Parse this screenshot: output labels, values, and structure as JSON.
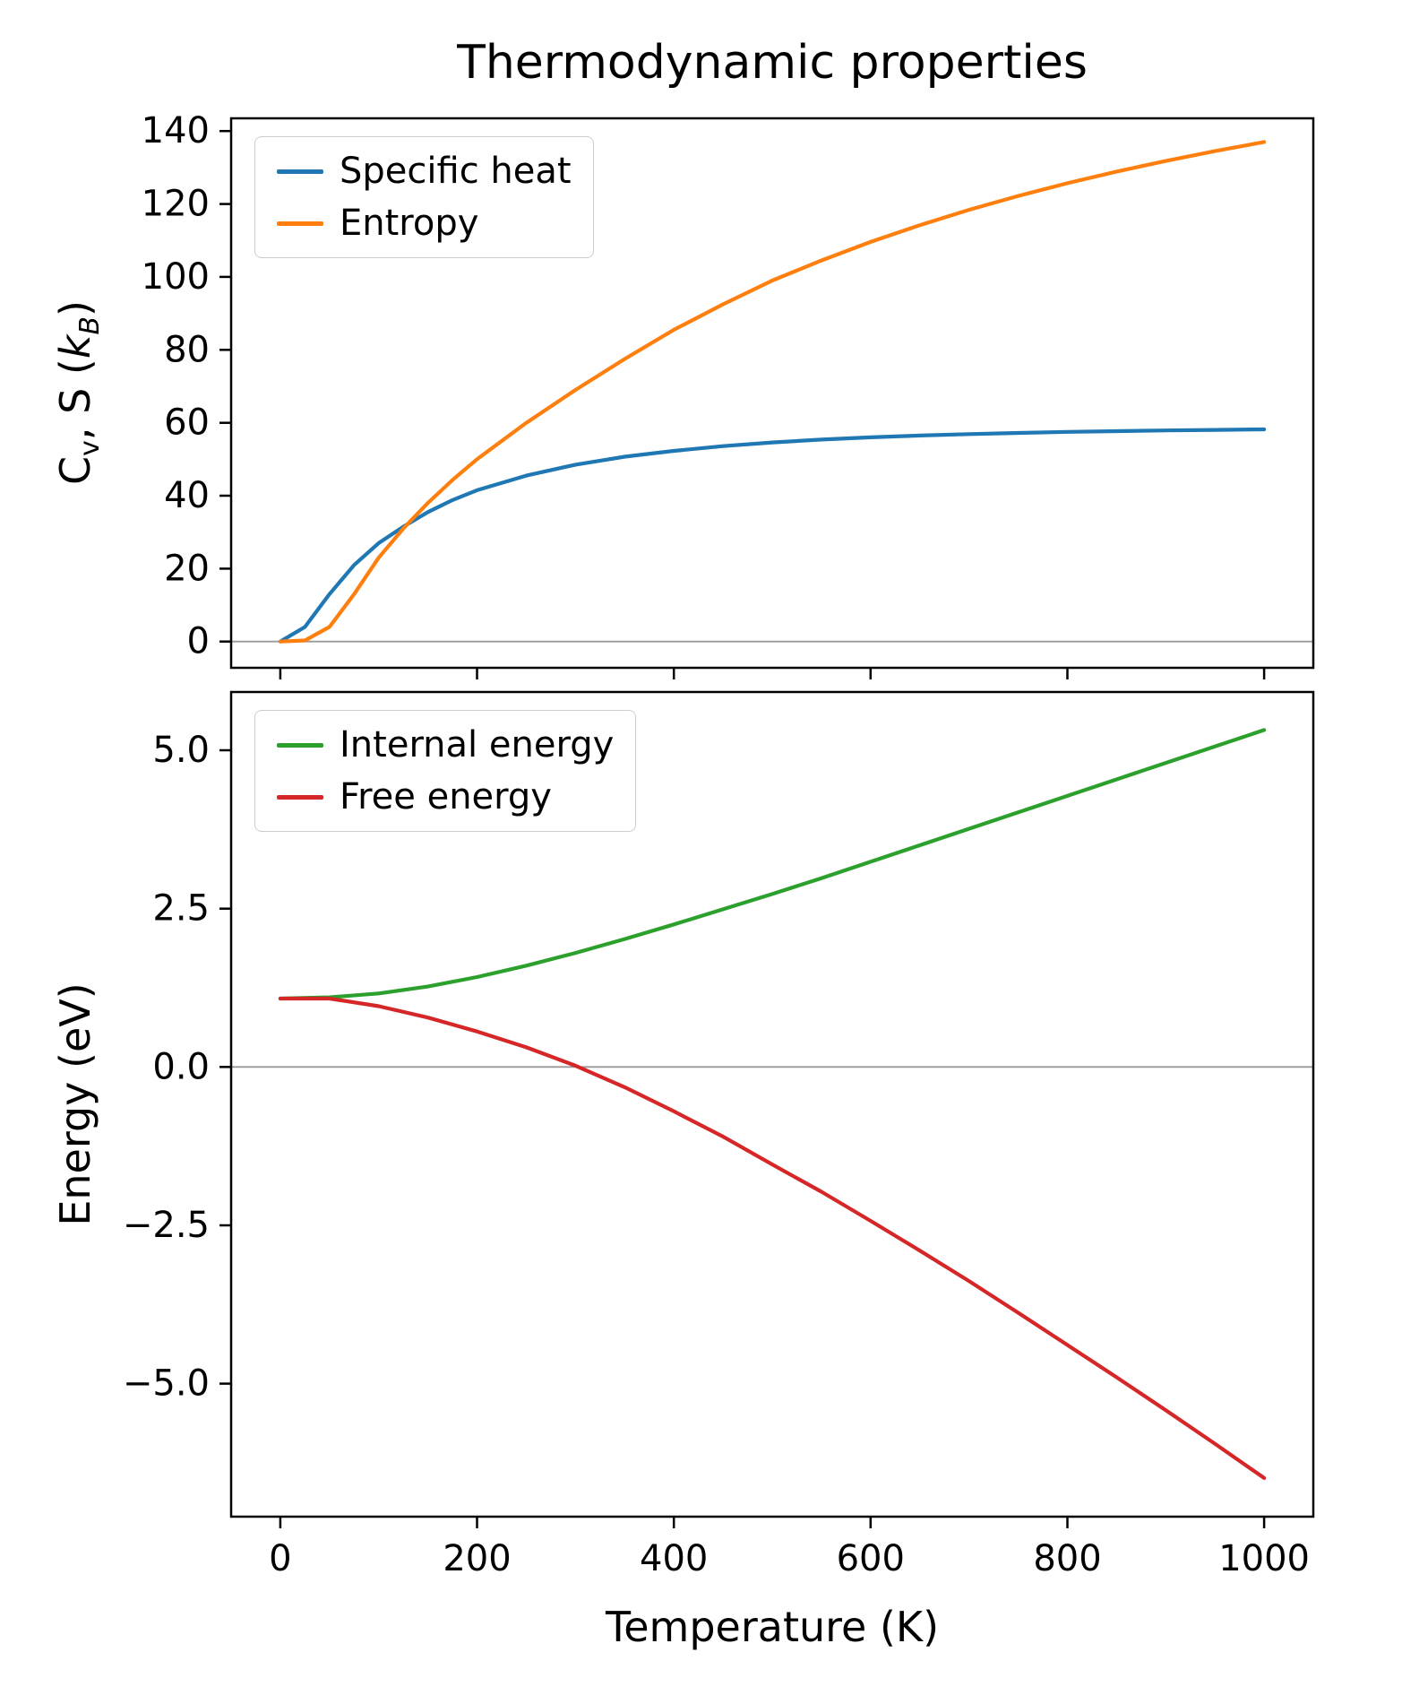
{
  "title": "Thermodynamic properties",
  "xlabel": "Temperature (K)",
  "ylabel_bottom": "Energy (eV)",
  "ylabel_top_rich": [
    {
      "t": "C"
    },
    {
      "t": "v",
      "sub": true
    },
    {
      "t": ", S ("
    },
    {
      "t": "k",
      "italic": true
    },
    {
      "t": "B",
      "italic": true,
      "sub": true
    },
    {
      "t": ")"
    }
  ],
  "colors": {
    "specific_heat": "#1f77b4",
    "entropy": "#ff7f0e",
    "internal_energy": "#2ca02c",
    "free_energy": "#d62728",
    "spine": "#000000",
    "zero_line": "#999999",
    "legend_border": "#cccccc"
  },
  "chart_data": [
    {
      "type": "line",
      "ylabel": "Cv, S (kB)",
      "legend_position": "upper left",
      "grid": false,
      "zero_line": true,
      "show_xtick_labels": false,
      "xlim": [
        -50,
        1050
      ],
      "ylim": [
        -7.2,
        143.5
      ],
      "x": [
        0,
        25,
        50,
        75,
        100,
        125,
        150,
        175,
        200,
        250,
        300,
        350,
        400,
        450,
        500,
        550,
        600,
        650,
        700,
        750,
        800,
        850,
        900,
        950,
        1000
      ],
      "series": [
        {
          "name": "Specific heat",
          "color": "#1f77b4",
          "values": [
            0,
            4,
            13,
            21,
            27,
            31.5,
            35.5,
            38.8,
            41.5,
            45.5,
            48.5,
            50.7,
            52.3,
            53.6,
            54.6,
            55.4,
            56.0,
            56.5,
            56.9,
            57.2,
            57.5,
            57.7,
            57.9,
            58.05,
            58.2
          ]
        },
        {
          "name": "Entropy",
          "color": "#ff7f0e",
          "values": [
            0,
            0.3,
            4,
            13,
            23,
            31,
            38,
            44.3,
            50,
            60,
            69,
            77.5,
            85.5,
            92.5,
            99,
            104.5,
            109.6,
            114.2,
            118.4,
            122.2,
            125.7,
            128.9,
            131.8,
            134.5,
            137
          ]
        }
      ],
      "yticks": [
        {
          "v": 0,
          "label": "0"
        },
        {
          "v": 20,
          "label": "20"
        },
        {
          "v": 40,
          "label": "40"
        },
        {
          "v": 60,
          "label": "60"
        },
        {
          "v": 80,
          "label": "80"
        },
        {
          "v": 100,
          "label": "100"
        },
        {
          "v": 120,
          "label": "120"
        },
        {
          "v": 140,
          "label": "140"
        }
      ],
      "xticks": [
        {
          "v": 0,
          "label": "0"
        },
        {
          "v": 200,
          "label": "200"
        },
        {
          "v": 400,
          "label": "400"
        },
        {
          "v": 600,
          "label": "600"
        },
        {
          "v": 800,
          "label": "800"
        },
        {
          "v": 1000,
          "label": "1000"
        }
      ]
    },
    {
      "type": "line",
      "ylabel": "Energy (eV)",
      "legend_position": "upper left",
      "grid": false,
      "zero_line": true,
      "show_xtick_labels": true,
      "xlim": [
        -50,
        1050
      ],
      "ylim": [
        -7.1,
        5.92
      ],
      "x": [
        0,
        50,
        100,
        150,
        200,
        250,
        300,
        350,
        400,
        450,
        500,
        550,
        600,
        650,
        700,
        750,
        800,
        850,
        900,
        950,
        1000
      ],
      "series": [
        {
          "name": "Internal energy",
          "color": "#2ca02c",
          "values": [
            1.08,
            1.1,
            1.16,
            1.27,
            1.42,
            1.6,
            1.8,
            2.02,
            2.25,
            2.49,
            2.73,
            2.98,
            3.24,
            3.5,
            3.76,
            4.02,
            4.28,
            4.54,
            4.8,
            5.06,
            5.32
          ]
        },
        {
          "name": "Free energy",
          "color": "#d62728",
          "values": [
            1.08,
            1.08,
            0.96,
            0.78,
            0.56,
            0.31,
            0.02,
            -0.32,
            -0.7,
            -1.1,
            -1.54,
            -1.97,
            -2.43,
            -2.9,
            -3.38,
            -3.88,
            -4.39,
            -4.9,
            -5.42,
            -5.95,
            -6.49
          ]
        }
      ],
      "yticks": [
        {
          "v": -5.0,
          "label": "−5.0"
        },
        {
          "v": -2.5,
          "label": "−2.5"
        },
        {
          "v": 0.0,
          "label": "0.0"
        },
        {
          "v": 2.5,
          "label": "2.5"
        },
        {
          "v": 5.0,
          "label": "5.0"
        }
      ],
      "xticks": [
        {
          "v": 0,
          "label": "0"
        },
        {
          "v": 200,
          "label": "200"
        },
        {
          "v": 400,
          "label": "400"
        },
        {
          "v": 600,
          "label": "600"
        },
        {
          "v": 800,
          "label": "800"
        },
        {
          "v": 1000,
          "label": "1000"
        }
      ]
    }
  ]
}
